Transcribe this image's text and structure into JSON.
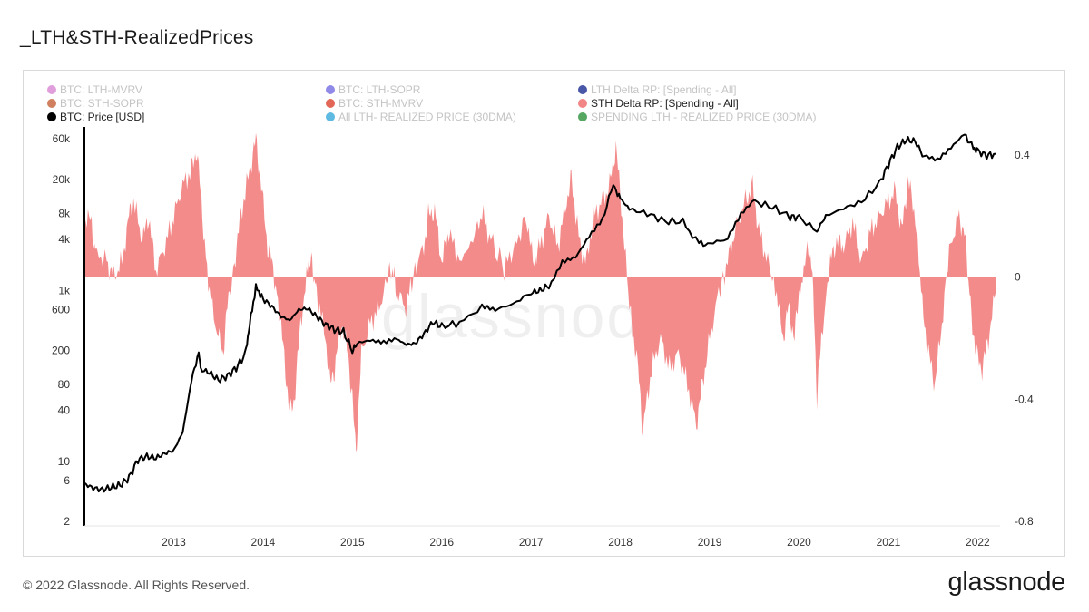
{
  "title": "_LTH&STH-RealizedPrices",
  "footer": "© 2022 Glassnode. All Rights Reserved.",
  "brand": "glassnode",
  "watermark": "glassnode",
  "legend": [
    {
      "label": "BTC: LTH-MVRV",
      "color": "#d57fd0",
      "active": false
    },
    {
      "label": "BTC: LTH-SOPR",
      "color": "#6a63e0",
      "active": false
    },
    {
      "label": "LTH Delta RP: [Spending - All]",
      "color": "#0b1f8a",
      "active": false
    },
    {
      "label": "BTC: STH-SOPR",
      "color": "#c2552a",
      "active": false
    },
    {
      "label": "BTC: STH-MVRV",
      "color": "#d8341e",
      "active": false
    },
    {
      "label": "STH Delta RP: [Spending - All]",
      "color": "#f28585",
      "active": true
    },
    {
      "label": "BTC: Price [USD]",
      "color": "#000000",
      "active": true
    },
    {
      "label": "All LTH- REALIZED PRICE (30DMA)",
      "color": "#2aa3d8",
      "active": false
    },
    {
      "label": "SPENDING LTH - REALIZED PRICE (30DMA)",
      "color": "#1c8a2c",
      "active": false
    }
  ],
  "chart_data": {
    "type": "area",
    "x_ticks": [
      "2013",
      "2014",
      "2015",
      "2016",
      "2017",
      "2018",
      "2019",
      "2020",
      "2021",
      "2022"
    ],
    "y_left_ticks": [
      "60k",
      "20k",
      "8k",
      "4k",
      "1k",
      "600",
      "200",
      "80",
      "40",
      "10",
      "6",
      "2"
    ],
    "y_right_ticks": [
      "0.4",
      "0",
      "-0.4",
      "-0.8"
    ],
    "y_left_scale": "log",
    "y_left_range": [
      2,
      60000
    ],
    "y_right_range": [
      -0.8,
      0.4
    ],
    "x_range": [
      2012.0,
      2022.25
    ],
    "series": [
      {
        "name": "BTC: Price [USD]",
        "axis": "left",
        "color": "#000000",
        "points": [
          [
            2012.0,
            5.5
          ],
          [
            2012.1,
            4.9
          ],
          [
            2012.2,
            4.7
          ],
          [
            2012.3,
            5.0
          ],
          [
            2012.4,
            5.3
          ],
          [
            2012.5,
            6.5
          ],
          [
            2012.6,
            10.5
          ],
          [
            2012.7,
            11.5
          ],
          [
            2012.8,
            11.0
          ],
          [
            2012.9,
            12.5
          ],
          [
            2013.0,
            13.5
          ],
          [
            2013.1,
            22
          ],
          [
            2013.2,
            90
          ],
          [
            2013.28,
            190
          ],
          [
            2013.3,
            120
          ],
          [
            2013.4,
            110
          ],
          [
            2013.5,
            90
          ],
          [
            2013.6,
            100
          ],
          [
            2013.7,
            125
          ],
          [
            2013.8,
            180
          ],
          [
            2013.85,
            400
          ],
          [
            2013.92,
            1100
          ],
          [
            2014.0,
            800
          ],
          [
            2014.1,
            650
          ],
          [
            2014.2,
            500
          ],
          [
            2014.3,
            450
          ],
          [
            2014.4,
            600
          ],
          [
            2014.5,
            620
          ],
          [
            2014.6,
            500
          ],
          [
            2014.7,
            400
          ],
          [
            2014.8,
            350
          ],
          [
            2014.9,
            330
          ],
          [
            2015.0,
            200
          ],
          [
            2015.05,
            230
          ],
          [
            2015.2,
            250
          ],
          [
            2015.35,
            240
          ],
          [
            2015.5,
            270
          ],
          [
            2015.6,
            235
          ],
          [
            2015.7,
            240
          ],
          [
            2015.8,
            310
          ],
          [
            2015.9,
            430
          ],
          [
            2016.0,
            380
          ],
          [
            2016.2,
            420
          ],
          [
            2016.45,
            650
          ],
          [
            2016.6,
            600
          ],
          [
            2016.8,
            700
          ],
          [
            2017.0,
            950
          ],
          [
            2017.1,
            1000
          ],
          [
            2017.2,
            1150
          ],
          [
            2017.35,
            2300
          ],
          [
            2017.5,
            2600
          ],
          [
            2017.65,
            4500
          ],
          [
            2017.8,
            7000
          ],
          [
            2017.92,
            17000
          ],
          [
            2018.0,
            12000
          ],
          [
            2018.1,
            9000
          ],
          [
            2018.3,
            8000
          ],
          [
            2018.5,
            6500
          ],
          [
            2018.7,
            6400
          ],
          [
            2018.88,
            3500
          ],
          [
            2019.0,
            3600
          ],
          [
            2019.2,
            4000
          ],
          [
            2019.35,
            7500
          ],
          [
            2019.5,
            11000
          ],
          [
            2019.7,
            9500
          ],
          [
            2019.9,
            7300
          ],
          [
            2020.0,
            7200
          ],
          [
            2020.2,
            5000
          ],
          [
            2020.3,
            7500
          ],
          [
            2020.5,
            9200
          ],
          [
            2020.7,
            11000
          ],
          [
            2020.9,
            18000
          ],
          [
            2021.0,
            30000
          ],
          [
            2021.1,
            48000
          ],
          [
            2021.2,
            58000
          ],
          [
            2021.3,
            56000
          ],
          [
            2021.4,
            36000
          ],
          [
            2021.55,
            32000
          ],
          [
            2021.7,
            45000
          ],
          [
            2021.85,
            66000
          ],
          [
            2021.95,
            48000
          ],
          [
            2022.0,
            43000
          ],
          [
            2022.1,
            38000
          ],
          [
            2022.2,
            40000
          ]
        ]
      },
      {
        "name": "STH Delta RP: [Spending - All]",
        "axis": "right",
        "color": "#f28585",
        "points": [
          [
            2012.0,
            0.2
          ],
          [
            2012.08,
            0.18
          ],
          [
            2012.12,
            0.08
          ],
          [
            2012.25,
            0.05
          ],
          [
            2012.33,
            0.0
          ],
          [
            2012.42,
            0.05
          ],
          [
            2012.5,
            0.2
          ],
          [
            2012.55,
            0.25
          ],
          [
            2012.65,
            0.12
          ],
          [
            2012.72,
            0.2
          ],
          [
            2012.8,
            0.02
          ],
          [
            2012.9,
            0.1
          ],
          [
            2013.0,
            0.2
          ],
          [
            2013.1,
            0.3
          ],
          [
            2013.2,
            0.35
          ],
          [
            2013.26,
            0.42
          ],
          [
            2013.32,
            0.2
          ],
          [
            2013.4,
            -0.05
          ],
          [
            2013.5,
            -0.2
          ],
          [
            2013.55,
            -0.25
          ],
          [
            2013.6,
            -0.1
          ],
          [
            2013.68,
            0.05
          ],
          [
            2013.75,
            0.2
          ],
          [
            2013.85,
            0.35
          ],
          [
            2013.92,
            0.45
          ],
          [
            2013.98,
            0.3
          ],
          [
            2014.05,
            0.1
          ],
          [
            2014.1,
            0.05
          ],
          [
            2014.18,
            -0.1
          ],
          [
            2014.25,
            -0.3
          ],
          [
            2014.3,
            -0.45
          ],
          [
            2014.35,
            -0.4
          ],
          [
            2014.42,
            -0.15
          ],
          [
            2014.5,
            0.02
          ],
          [
            2014.55,
            0.05
          ],
          [
            2014.6,
            -0.05
          ],
          [
            2014.7,
            -0.2
          ],
          [
            2014.75,
            -0.35
          ],
          [
            2014.8,
            -0.3
          ],
          [
            2014.88,
            -0.15
          ],
          [
            2014.95,
            -0.25
          ],
          [
            2015.0,
            -0.4
          ],
          [
            2015.04,
            -0.58
          ],
          [
            2015.1,
            -0.25
          ],
          [
            2015.2,
            -0.15
          ],
          [
            2015.3,
            -0.1
          ],
          [
            2015.4,
            0.0
          ],
          [
            2015.45,
            0.02
          ],
          [
            2015.5,
            -0.05
          ],
          [
            2015.6,
            -0.1
          ],
          [
            2015.7,
            0.03
          ],
          [
            2015.8,
            0.1
          ],
          [
            2015.85,
            0.2
          ],
          [
            2015.92,
            0.22
          ],
          [
            2016.0,
            0.05
          ],
          [
            2016.08,
            0.15
          ],
          [
            2016.2,
            0.05
          ],
          [
            2016.35,
            0.12
          ],
          [
            2016.45,
            0.21
          ],
          [
            2016.55,
            0.12
          ],
          [
            2016.7,
            0.03
          ],
          [
            2016.82,
            0.1
          ],
          [
            2016.95,
            0.2
          ],
          [
            2017.02,
            0.05
          ],
          [
            2017.1,
            0.1
          ],
          [
            2017.2,
            0.2
          ],
          [
            2017.3,
            0.1
          ],
          [
            2017.4,
            0.25
          ],
          [
            2017.45,
            0.32
          ],
          [
            2017.55,
            0.1
          ],
          [
            2017.62,
            0.05
          ],
          [
            2017.7,
            0.2
          ],
          [
            2017.8,
            0.25
          ],
          [
            2017.88,
            0.3
          ],
          [
            2017.95,
            0.43
          ],
          [
            2018.02,
            0.2
          ],
          [
            2018.1,
            -0.1
          ],
          [
            2018.2,
            -0.3
          ],
          [
            2018.25,
            -0.5
          ],
          [
            2018.35,
            -0.3
          ],
          [
            2018.45,
            -0.2
          ],
          [
            2018.55,
            -0.3
          ],
          [
            2018.65,
            -0.25
          ],
          [
            2018.75,
            -0.35
          ],
          [
            2018.85,
            -0.48
          ],
          [
            2018.92,
            -0.35
          ],
          [
            2019.0,
            -0.2
          ],
          [
            2019.1,
            -0.05
          ],
          [
            2019.2,
            0.05
          ],
          [
            2019.28,
            0.15
          ],
          [
            2019.4,
            0.25
          ],
          [
            2019.48,
            0.3
          ],
          [
            2019.55,
            0.15
          ],
          [
            2019.65,
            0.05
          ],
          [
            2019.75,
            -0.05
          ],
          [
            2019.82,
            -0.2
          ],
          [
            2019.88,
            -0.1
          ],
          [
            2019.95,
            -0.2
          ],
          [
            2020.0,
            -0.05
          ],
          [
            2020.08,
            0.08
          ],
          [
            2020.15,
            0.05
          ],
          [
            2020.2,
            -0.4
          ],
          [
            2020.25,
            -0.2
          ],
          [
            2020.35,
            0.05
          ],
          [
            2020.42,
            0.12
          ],
          [
            2020.5,
            0.1
          ],
          [
            2020.6,
            0.18
          ],
          [
            2020.7,
            0.05
          ],
          [
            2020.8,
            0.15
          ],
          [
            2020.9,
            0.2
          ],
          [
            2021.0,
            0.25
          ],
          [
            2021.08,
            0.28
          ],
          [
            2021.15,
            0.15
          ],
          [
            2021.22,
            0.32
          ],
          [
            2021.3,
            0.2
          ],
          [
            2021.38,
            -0.1
          ],
          [
            2021.45,
            -0.25
          ],
          [
            2021.52,
            -0.35
          ],
          [
            2021.6,
            -0.15
          ],
          [
            2021.68,
            0.08
          ],
          [
            2021.78,
            0.2
          ],
          [
            2021.85,
            0.15
          ],
          [
            2021.92,
            -0.1
          ],
          [
            2021.98,
            -0.25
          ],
          [
            2022.05,
            -0.3
          ],
          [
            2022.12,
            -0.2
          ],
          [
            2022.2,
            -0.05
          ]
        ]
      }
    ]
  }
}
